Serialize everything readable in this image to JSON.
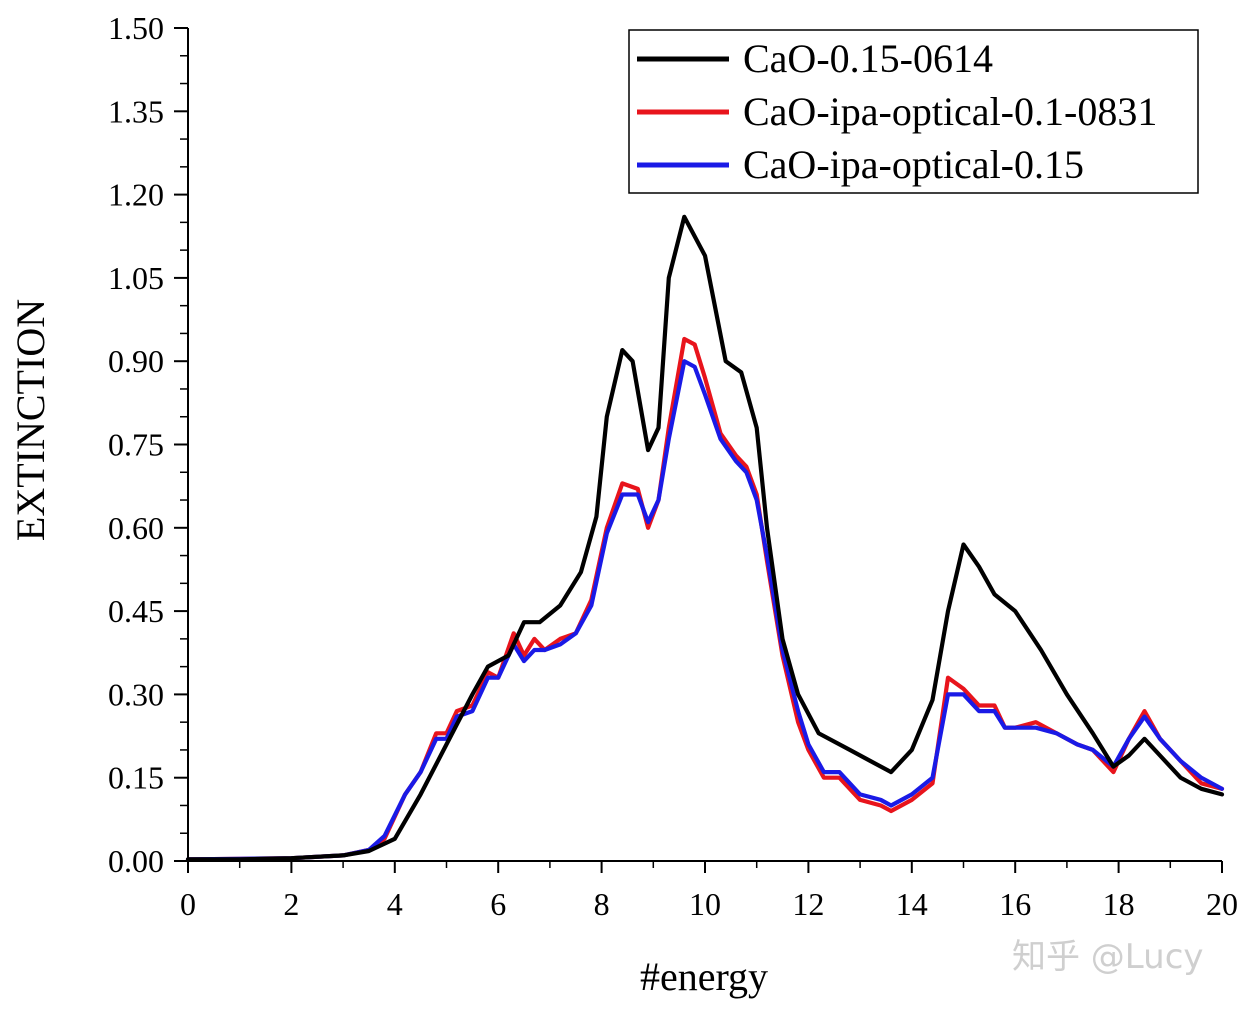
{
  "chart_data": {
    "type": "line",
    "title": "",
    "xlabel": "#energy",
    "ylabel": "EXTINCTION",
    "xlim": [
      0,
      20
    ],
    "ylim": [
      0,
      1.5
    ],
    "x_ticks": [
      "0",
      "2",
      "4",
      "6",
      "8",
      "10",
      "12",
      "14",
      "16",
      "18",
      "20"
    ],
    "y_ticks": [
      "0.00",
      "0.15",
      "0.30",
      "0.45",
      "0.60",
      "0.75",
      "0.90",
      "1.05",
      "1.20",
      "1.35",
      "1.50"
    ],
    "legend_position": "top-right",
    "series": [
      {
        "name": "CaO-0.15-0614",
        "color": "#000000",
        "points": [
          [
            0,
            0.003
          ],
          [
            1,
            0.003
          ],
          [
            2,
            0.005
          ],
          [
            3,
            0.01
          ],
          [
            3.5,
            0.018
          ],
          [
            4,
            0.04
          ],
          [
            4.5,
            0.12
          ],
          [
            5,
            0.21
          ],
          [
            5.5,
            0.3
          ],
          [
            5.8,
            0.35
          ],
          [
            6.2,
            0.37
          ],
          [
            6.5,
            0.43
          ],
          [
            6.8,
            0.43
          ],
          [
            7.2,
            0.46
          ],
          [
            7.6,
            0.52
          ],
          [
            7.9,
            0.62
          ],
          [
            8.1,
            0.8
          ],
          [
            8.4,
            0.92
          ],
          [
            8.6,
            0.9
          ],
          [
            8.9,
            0.74
          ],
          [
            9.1,
            0.78
          ],
          [
            9.3,
            1.05
          ],
          [
            9.6,
            1.16
          ],
          [
            10.0,
            1.09
          ],
          [
            10.4,
            0.9
          ],
          [
            10.7,
            0.88
          ],
          [
            11.0,
            0.78
          ],
          [
            11.2,
            0.6
          ],
          [
            11.5,
            0.4
          ],
          [
            11.8,
            0.3
          ],
          [
            12.2,
            0.23
          ],
          [
            12.8,
            0.2
          ],
          [
            13.2,
            0.18
          ],
          [
            13.6,
            0.16
          ],
          [
            14.0,
            0.2
          ],
          [
            14.4,
            0.29
          ],
          [
            14.7,
            0.45
          ],
          [
            15.0,
            0.57
          ],
          [
            15.3,
            0.53
          ],
          [
            15.6,
            0.48
          ],
          [
            16.0,
            0.45
          ],
          [
            16.5,
            0.38
          ],
          [
            17.0,
            0.3
          ],
          [
            17.5,
            0.23
          ],
          [
            17.9,
            0.17
          ],
          [
            18.2,
            0.19
          ],
          [
            18.5,
            0.22
          ],
          [
            18.8,
            0.19
          ],
          [
            19.2,
            0.15
          ],
          [
            19.6,
            0.13
          ],
          [
            20,
            0.12
          ]
        ]
      },
      {
        "name": "CaO-ipa-optical-0.1-0831",
        "color": "#e8141c",
        "points": [
          [
            0,
            0.003
          ],
          [
            1,
            0.004
          ],
          [
            2,
            0.005
          ],
          [
            3,
            0.01
          ],
          [
            3.5,
            0.02
          ],
          [
            3.8,
            0.04
          ],
          [
            4.2,
            0.12
          ],
          [
            4.5,
            0.16
          ],
          [
            4.8,
            0.23
          ],
          [
            5.0,
            0.23
          ],
          [
            5.2,
            0.27
          ],
          [
            5.5,
            0.28
          ],
          [
            5.8,
            0.34
          ],
          [
            6.0,
            0.33
          ],
          [
            6.3,
            0.41
          ],
          [
            6.5,
            0.37
          ],
          [
            6.7,
            0.4
          ],
          [
            6.9,
            0.38
          ],
          [
            7.2,
            0.4
          ],
          [
            7.5,
            0.41
          ],
          [
            7.8,
            0.47
          ],
          [
            8.1,
            0.6
          ],
          [
            8.4,
            0.68
          ],
          [
            8.7,
            0.67
          ],
          [
            8.9,
            0.6
          ],
          [
            9.1,
            0.65
          ],
          [
            9.3,
            0.78
          ],
          [
            9.6,
            0.94
          ],
          [
            9.8,
            0.93
          ],
          [
            10.0,
            0.87
          ],
          [
            10.3,
            0.77
          ],
          [
            10.6,
            0.73
          ],
          [
            10.8,
            0.71
          ],
          [
            11.0,
            0.66
          ],
          [
            11.2,
            0.54
          ],
          [
            11.5,
            0.37
          ],
          [
            11.8,
            0.25
          ],
          [
            12.0,
            0.2
          ],
          [
            12.3,
            0.15
          ],
          [
            12.6,
            0.15
          ],
          [
            13.0,
            0.11
          ],
          [
            13.4,
            0.1
          ],
          [
            13.6,
            0.09
          ],
          [
            14.0,
            0.11
          ],
          [
            14.4,
            0.14
          ],
          [
            14.7,
            0.33
          ],
          [
            15.0,
            0.31
          ],
          [
            15.3,
            0.28
          ],
          [
            15.6,
            0.28
          ],
          [
            15.8,
            0.24
          ],
          [
            16.0,
            0.24
          ],
          [
            16.4,
            0.25
          ],
          [
            16.8,
            0.23
          ],
          [
            17.2,
            0.21
          ],
          [
            17.5,
            0.2
          ],
          [
            17.9,
            0.16
          ],
          [
            18.2,
            0.22
          ],
          [
            18.5,
            0.27
          ],
          [
            18.8,
            0.22
          ],
          [
            19.2,
            0.18
          ],
          [
            19.6,
            0.14
          ],
          [
            20,
            0.13
          ]
        ]
      },
      {
        "name": "CaO-ipa-optical-0.15",
        "color": "#1a1ae6",
        "points": [
          [
            0,
            0.003
          ],
          [
            1,
            0.004
          ],
          [
            2,
            0.005
          ],
          [
            3,
            0.01
          ],
          [
            3.5,
            0.02
          ],
          [
            3.8,
            0.045
          ],
          [
            4.2,
            0.12
          ],
          [
            4.5,
            0.16
          ],
          [
            4.8,
            0.22
          ],
          [
            5.0,
            0.22
          ],
          [
            5.2,
            0.26
          ],
          [
            5.5,
            0.27
          ],
          [
            5.8,
            0.33
          ],
          [
            6.0,
            0.33
          ],
          [
            6.3,
            0.39
          ],
          [
            6.5,
            0.36
          ],
          [
            6.7,
            0.38
          ],
          [
            6.9,
            0.38
          ],
          [
            7.2,
            0.39
          ],
          [
            7.5,
            0.41
          ],
          [
            7.8,
            0.46
          ],
          [
            8.1,
            0.59
          ],
          [
            8.4,
            0.66
          ],
          [
            8.7,
            0.66
          ],
          [
            8.9,
            0.61
          ],
          [
            9.1,
            0.65
          ],
          [
            9.3,
            0.76
          ],
          [
            9.6,
            0.9
          ],
          [
            9.8,
            0.89
          ],
          [
            10.0,
            0.84
          ],
          [
            10.3,
            0.76
          ],
          [
            10.6,
            0.72
          ],
          [
            10.8,
            0.7
          ],
          [
            11.0,
            0.65
          ],
          [
            11.2,
            0.55
          ],
          [
            11.5,
            0.38
          ],
          [
            11.8,
            0.27
          ],
          [
            12.0,
            0.21
          ],
          [
            12.3,
            0.16
          ],
          [
            12.6,
            0.16
          ],
          [
            13.0,
            0.12
          ],
          [
            13.4,
            0.11
          ],
          [
            13.6,
            0.1
          ],
          [
            14.0,
            0.12
          ],
          [
            14.4,
            0.15
          ],
          [
            14.7,
            0.3
          ],
          [
            15.0,
            0.3
          ],
          [
            15.3,
            0.27
          ],
          [
            15.6,
            0.27
          ],
          [
            15.8,
            0.24
          ],
          [
            16.0,
            0.24
          ],
          [
            16.4,
            0.24
          ],
          [
            16.8,
            0.23
          ],
          [
            17.2,
            0.21
          ],
          [
            17.5,
            0.2
          ],
          [
            17.9,
            0.17
          ],
          [
            18.2,
            0.22
          ],
          [
            18.5,
            0.26
          ],
          [
            18.8,
            0.22
          ],
          [
            19.2,
            0.18
          ],
          [
            19.6,
            0.15
          ],
          [
            20,
            0.13
          ]
        ]
      }
    ],
    "watermark": "知乎 @Lucy"
  }
}
